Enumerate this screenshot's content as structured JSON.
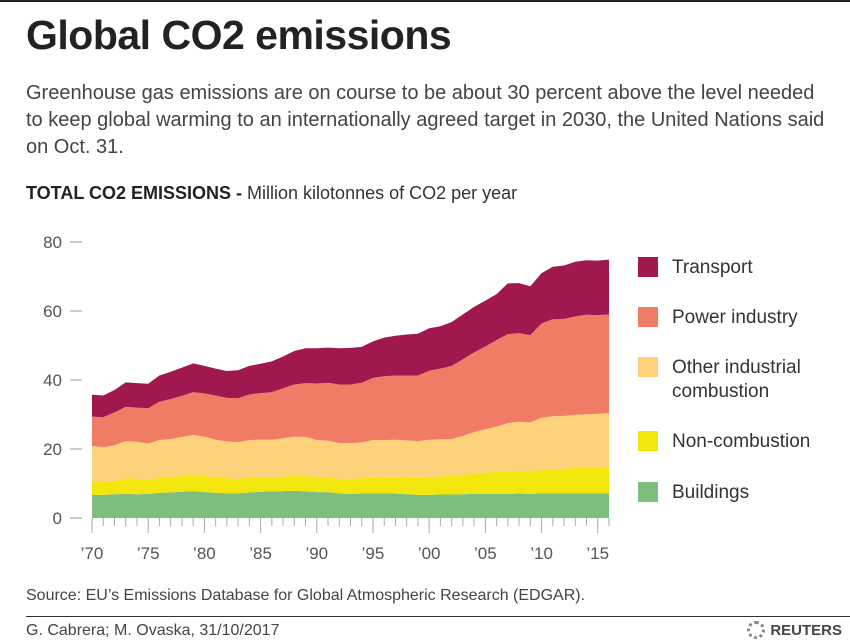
{
  "title": "Global CO2 emissions",
  "subtitle": "Greenhouse gas emissions are on course to be about 30 percent above the level needed to keep global warming to an internationally agreed target in 2030, the United Nations said on Oct. 31.",
  "chart_heading": {
    "bold": "TOTAL CO2 EMISSIONS -",
    "rest": " Million kilotonnes of CO2 per year"
  },
  "source": "Source: EU’s Emissions Database for Global Atmospheric Research (EDGAR).",
  "credit": "G. Cabrera; M. Ovaska, 31/10/2017",
  "logo_text": "REUTERS",
  "chart_data": {
    "type": "area",
    "stacked": true,
    "title": "TOTAL CO2 EMISSIONS - Million kilotonnes of CO2 per year",
    "xlabel": "",
    "ylabel": "",
    "ylim": [
      0,
      80
    ],
    "xlim": [
      1970,
      2016
    ],
    "yticks": [
      0,
      20,
      40,
      60,
      80
    ],
    "ytick_labels": [
      "0",
      "20",
      "40",
      "60",
      "80"
    ],
    "xticks": [
      1970,
      1975,
      1980,
      1985,
      1990,
      1995,
      2000,
      2005,
      2010,
      2015
    ],
    "xtick_labels": [
      "’70",
      "’75",
      "’80",
      "’85",
      "’90",
      "’95",
      "’00",
      "’05",
      "’10",
      "’15"
    ],
    "grid": false,
    "legend_position": "right",
    "x": [
      1970,
      1971,
      1972,
      1973,
      1974,
      1975,
      1976,
      1977,
      1978,
      1979,
      1980,
      1981,
      1982,
      1983,
      1984,
      1985,
      1986,
      1987,
      1988,
      1989,
      1990,
      1991,
      1992,
      1993,
      1994,
      1995,
      1996,
      1997,
      1998,
      1999,
      2000,
      2001,
      2002,
      2003,
      2004,
      2005,
      2006,
      2007,
      2008,
      2009,
      2010,
      2011,
      2012,
      2013,
      2014,
      2015,
      2016
    ],
    "series": [
      {
        "name": "Buildings",
        "color": "#7dbe7f",
        "values": [
          6.7,
          6.7,
          6.9,
          7.0,
          6.9,
          7.0,
          7.3,
          7.4,
          7.6,
          7.8,
          7.5,
          7.3,
          7.2,
          7.2,
          7.4,
          7.6,
          7.7,
          7.8,
          7.9,
          7.7,
          7.5,
          7.5,
          7.1,
          7.0,
          7.1,
          7.2,
          7.2,
          7.1,
          6.9,
          6.7,
          6.7,
          6.8,
          6.8,
          6.9,
          7.0,
          7.0,
          7.0,
          7.0,
          7.1,
          7.0,
          7.2,
          7.1,
          7.1,
          7.1,
          7.1,
          7.1,
          7.1
        ]
      },
      {
        "name": "Non-combustion",
        "color": "#f3e60f",
        "values": [
          3.8,
          3.7,
          3.9,
          4.5,
          4.5,
          4.2,
          4.4,
          4.5,
          4.6,
          4.6,
          4.7,
          4.5,
          4.3,
          4.2,
          4.4,
          4.3,
          4.2,
          4.2,
          4.3,
          4.4,
          4.4,
          4.2,
          4.3,
          4.4,
          4.4,
          4.5,
          4.6,
          4.7,
          4.8,
          4.9,
          5.1,
          5.2,
          5.4,
          5.6,
          5.9,
          6.2,
          6.4,
          6.6,
          6.6,
          6.6,
          6.8,
          7.1,
          7.2,
          7.4,
          7.5,
          7.5,
          7.6
        ]
      },
      {
        "name": "Other industrial combustion",
        "color": "#fdd27a",
        "values": [
          10.4,
          10.1,
          10.3,
          10.8,
          10.7,
          10.4,
          10.9,
          11.0,
          11.3,
          11.7,
          11.4,
          10.9,
          10.7,
          10.6,
          10.8,
          10.8,
          10.8,
          11.1,
          11.4,
          11.4,
          10.7,
          10.7,
          10.3,
          10.3,
          10.4,
          10.9,
          10.8,
          10.9,
          10.8,
          10.7,
          10.9,
          10.8,
          10.7,
          11.3,
          12.0,
          12.5,
          13.1,
          13.9,
          14.2,
          14.1,
          15.1,
          15.3,
          15.3,
          15.4,
          15.5,
          15.6,
          15.7
        ]
      },
      {
        "name": "Power industry",
        "color": "#f07c66",
        "values": [
          8.5,
          8.7,
          9.5,
          9.9,
          9.9,
          10.2,
          11.1,
          11.6,
          11.9,
          12.4,
          12.5,
          12.8,
          12.6,
          12.7,
          13.2,
          13.5,
          13.8,
          14.5,
          15.1,
          15.6,
          16.4,
          16.8,
          17.0,
          17.0,
          17.3,
          18.0,
          18.5,
          18.6,
          18.8,
          19.0,
          20.0,
          20.5,
          21.2,
          22.2,
          23.1,
          24.0,
          25.1,
          25.8,
          25.7,
          25.3,
          27.3,
          28.1,
          28.1,
          28.5,
          28.8,
          28.6,
          28.6
        ]
      },
      {
        "name": "Transport",
        "color": "#a0184e",
        "values": [
          6.3,
          6.3,
          6.5,
          7.1,
          7.1,
          7.1,
          7.6,
          7.9,
          8.2,
          8.3,
          8.0,
          7.8,
          7.8,
          8.1,
          8.3,
          8.5,
          8.9,
          9.2,
          9.7,
          10.1,
          10.2,
          10.2,
          10.5,
          10.6,
          10.4,
          10.6,
          11.2,
          11.5,
          11.9,
          12.1,
          12.3,
          12.3,
          12.7,
          13.0,
          13.2,
          13.3,
          13.3,
          14.7,
          14.5,
          14.2,
          14.6,
          15.2,
          15.5,
          15.9,
          15.8,
          15.8,
          15.9
        ]
      }
    ],
    "legend": [
      {
        "label": "Transport",
        "color": "#a0184e"
      },
      {
        "label": "Power industry",
        "color": "#f07c66"
      },
      {
        "label": "Other industrial combustion",
        "color": "#fdd27a"
      },
      {
        "label": "Non-combustion",
        "color": "#f3e60f"
      },
      {
        "label": "Buildings",
        "color": "#7dbe7f"
      }
    ]
  }
}
